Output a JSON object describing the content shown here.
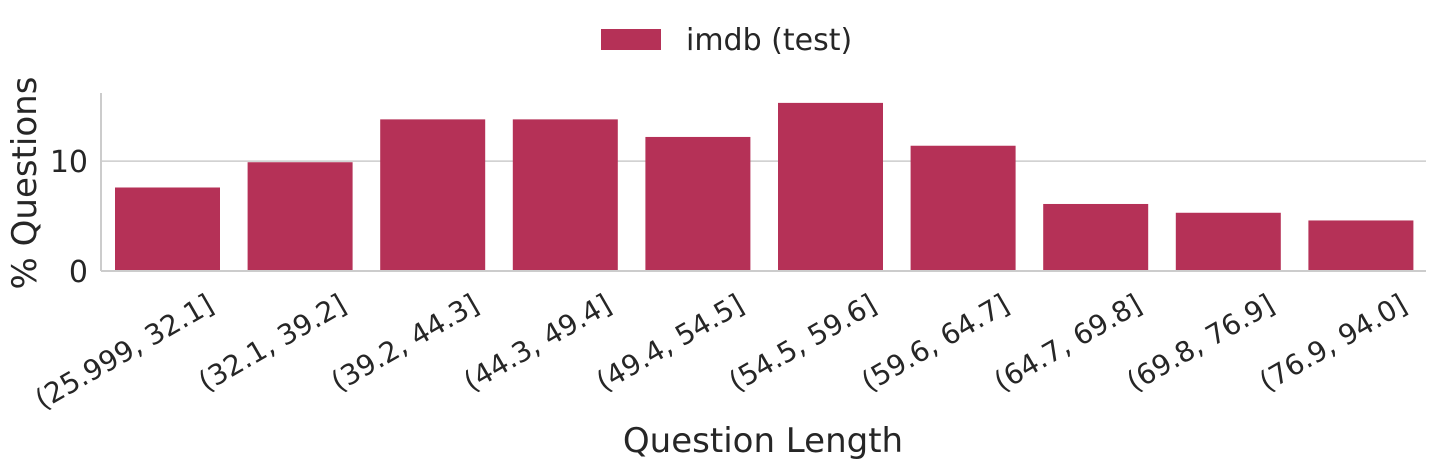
{
  "chart_data": {
    "type": "bar",
    "categories": [
      "(25.999, 32.1]",
      "(32.1, 39.2]",
      "(39.2, 44.3]",
      "(44.3, 49.4]",
      "(49.4, 54.5]",
      "(54.5, 59.6]",
      "(59.6, 64.7]",
      "(64.7, 69.8]",
      "(69.8, 76.9]",
      "(76.9, 94.0]"
    ],
    "series": [
      {
        "name": "imdb (test)",
        "values": [
          7.6,
          9.9,
          13.8,
          13.8,
          12.2,
          15.3,
          11.4,
          6.1,
          5.3,
          4.6
        ],
        "color": "#b53157"
      }
    ],
    "xlabel": "Question Length",
    "ylabel": "% Questions",
    "ylim": [
      0,
      16.2
    ],
    "yticks": [
      0,
      10
    ],
    "grid": "horizontal",
    "legend_position": "top-center"
  }
}
